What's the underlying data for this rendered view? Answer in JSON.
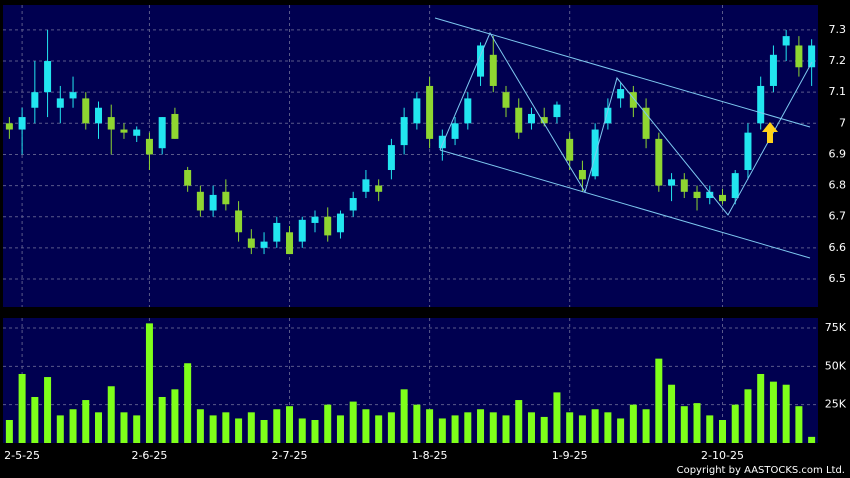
{
  "chart_data": [
    {
      "type": "candlestick",
      "open": [
        7.0,
        6.98,
        7.05,
        7.1,
        7.05,
        7.08,
        7.08,
        7.0,
        7.02,
        6.98,
        6.96,
        6.95,
        6.92,
        7.03,
        6.85,
        6.78,
        6.72,
        6.78,
        6.72,
        6.63,
        6.6,
        6.62,
        6.65,
        6.62,
        6.68,
        6.7,
        6.65,
        6.72,
        6.78,
        6.8,
        6.85,
        6.93,
        7.0,
        7.12,
        6.92,
        6.95,
        7.0,
        7.15,
        7.22,
        7.1,
        7.05,
        7.0,
        7.02,
        7.02,
        6.95,
        6.85,
        6.83,
        7.0,
        7.08,
        7.1,
        7.05,
        6.95,
        6.8,
        6.82,
        6.78,
        6.76,
        6.77,
        6.76,
        6.85,
        7.0,
        7.12,
        7.25,
        7.25,
        7.18
      ],
      "high": [
        7.02,
        7.05,
        7.2,
        7.3,
        7.12,
        7.15,
        7.1,
        7.07,
        7.06,
        7.0,
        6.99,
        6.97,
        7.02,
        7.05,
        6.86,
        6.8,
        6.8,
        6.82,
        6.75,
        6.66,
        6.65,
        6.7,
        6.67,
        6.7,
        6.72,
        6.73,
        6.72,
        6.78,
        6.85,
        6.82,
        6.95,
        7.05,
        7.1,
        7.15,
        6.98,
        7.02,
        7.1,
        7.26,
        7.28,
        7.12,
        7.08,
        7.05,
        7.05,
        7.07,
        6.97,
        6.88,
        7.0,
        7.08,
        7.13,
        7.12,
        7.08,
        6.97,
        6.84,
        6.84,
        6.8,
        6.8,
        6.79,
        6.85,
        7.0,
        7.15,
        7.25,
        7.3,
        7.28,
        7.27
      ],
      "low": [
        6.95,
        6.9,
        7.0,
        7.02,
        7.0,
        7.05,
        6.98,
        6.95,
        6.9,
        6.95,
        6.94,
        6.85,
        6.9,
        6.95,
        6.78,
        6.7,
        6.7,
        6.72,
        6.62,
        6.58,
        6.58,
        6.6,
        6.58,
        6.6,
        6.65,
        6.62,
        6.63,
        6.7,
        6.76,
        6.75,
        6.82,
        6.9,
        6.98,
        6.92,
        6.88,
        6.93,
        6.98,
        7.12,
        7.1,
        7.02,
        6.95,
        6.98,
        6.99,
        7.0,
        6.85,
        6.78,
        6.82,
        6.98,
        7.05,
        7.02,
        6.92,
        6.78,
        6.75,
        6.76,
        6.72,
        6.74,
        6.74,
        6.74,
        6.82,
        6.98,
        7.1,
        7.2,
        7.15,
        7.12
      ],
      "close": [
        6.98,
        7.02,
        7.1,
        7.2,
        7.08,
        7.1,
        7.0,
        7.05,
        6.98,
        6.97,
        6.98,
        6.9,
        7.02,
        6.95,
        6.8,
        6.72,
        6.77,
        6.74,
        6.65,
        6.6,
        6.62,
        6.68,
        6.58,
        6.69,
        6.7,
        6.64,
        6.71,
        6.76,
        6.82,
        6.78,
        6.93,
        7.02,
        7.08,
        6.95,
        6.96,
        7.0,
        7.08,
        7.25,
        7.12,
        7.05,
        6.97,
        7.03,
        7.0,
        7.06,
        6.88,
        6.82,
        6.98,
        7.05,
        7.11,
        7.05,
        6.95,
        6.8,
        6.82,
        6.78,
        6.76,
        6.78,
        6.75,
        6.84,
        6.97,
        7.12,
        7.22,
        7.28,
        7.18,
        7.25
      ],
      "up_color": "#22e6f0",
      "down_color": "#8fd631",
      "ylim": [
        6.41,
        7.38
      ],
      "yticks": [
        6.5,
        6.6,
        6.7,
        6.8,
        6.9,
        7,
        7.1,
        7.2,
        7.3
      ],
      "grid": true
    },
    {
      "type": "bar",
      "values": [
        15000,
        45000,
        30000,
        43000,
        18000,
        22000,
        28000,
        20000,
        37000,
        20000,
        18000,
        78000,
        30000,
        35000,
        52000,
        22000,
        18000,
        20000,
        16000,
        20000,
        15000,
        22000,
        24000,
        16000,
        15000,
        25000,
        18000,
        27000,
        22000,
        18000,
        20000,
        35000,
        25000,
        22000,
        16000,
        18000,
        20000,
        22000,
        20000,
        18000,
        28000,
        20000,
        17000,
        33000,
        20000,
        18000,
        22000,
        20000,
        16000,
        25000,
        22000,
        55000,
        38000,
        24000,
        26000,
        18000,
        15000,
        25000,
        35000,
        45000,
        40000,
        38000,
        24000,
        4000
      ],
      "color": "#7fff1a",
      "ylim": [
        0,
        81500
      ],
      "yticks": [
        {
          "value": 25000,
          "label": "25K"
        },
        {
          "value": 50000,
          "label": "50K"
        },
        {
          "value": 75000,
          "label": "75K"
        }
      ],
      "xticks": [
        {
          "value": 1,
          "label": "2-5-25"
        },
        {
          "value": 11,
          "label": "2-6-25"
        },
        {
          "value": 22,
          "label": "2-7-25"
        },
        {
          "value": 33,
          "label": "1-8-25"
        },
        {
          "value": 44,
          "label": "1-9-25"
        },
        {
          "value": 56,
          "label": "2-10-25"
        }
      ],
      "grid": true
    }
  ],
  "footer": "Copyright by AASTOCKS.com Ltd."
}
